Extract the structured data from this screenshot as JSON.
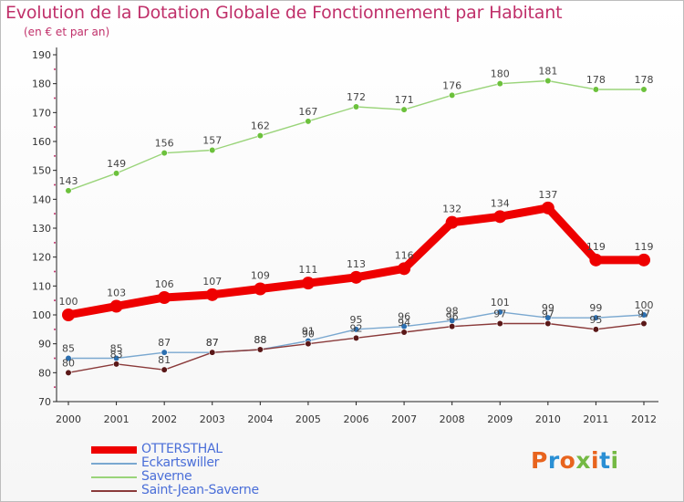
{
  "title": "Evolution de la Dotation Globale de Fonctionnement par Habitant",
  "subtitle": "(en € et par an)",
  "logo_text": "Proxiti",
  "logo_colors": [
    "#e8641e",
    "#2a8fd4",
    "#e8641e",
    "#74b944",
    "#e8641e",
    "#2a8fd4",
    "#74b944"
  ],
  "chart_data": {
    "type": "line",
    "title": "Evolution de la Dotation Globale de Fonctionnement par Habitant",
    "subtitle": "(en € et par an)",
    "x": [
      2000,
      2001,
      2002,
      2003,
      2004,
      2005,
      2006,
      2007,
      2008,
      2009,
      2010,
      2011,
      2012
    ],
    "ylim": [
      70,
      190
    ],
    "yticks": [
      70,
      80,
      90,
      100,
      110,
      120,
      130,
      140,
      150,
      160,
      170,
      180,
      190
    ],
    "grid": false,
    "legend_position": "bottom-left",
    "series": [
      {
        "name": "OTTERSTHAL",
        "color": "#ee0000",
        "emphasis": true,
        "values": [
          100,
          103,
          106,
          107,
          109,
          111,
          113,
          116,
          132,
          134,
          137,
          119,
          119
        ]
      },
      {
        "name": "Eckartswiller",
        "color": "#7aa8d0",
        "marker": "#2c6fb0",
        "values": [
          85,
          85,
          87,
          87,
          88,
          91,
          95,
          96,
          98,
          101,
          99,
          99,
          100
        ]
      },
      {
        "name": "Saverne",
        "color": "#9ad47a",
        "marker": "#6cc13c",
        "values": [
          143,
          149,
          156,
          157,
          162,
          167,
          172,
          171,
          176,
          180,
          181,
          178,
          178
        ]
      },
      {
        "name": "Saint-Jean-Saverne",
        "color": "#8a3a3a",
        "marker": "#5a1818",
        "values": [
          80,
          83,
          81,
          87,
          88,
          90,
          92,
          94,
          96,
          97,
          97,
          95,
          97
        ]
      }
    ]
  }
}
